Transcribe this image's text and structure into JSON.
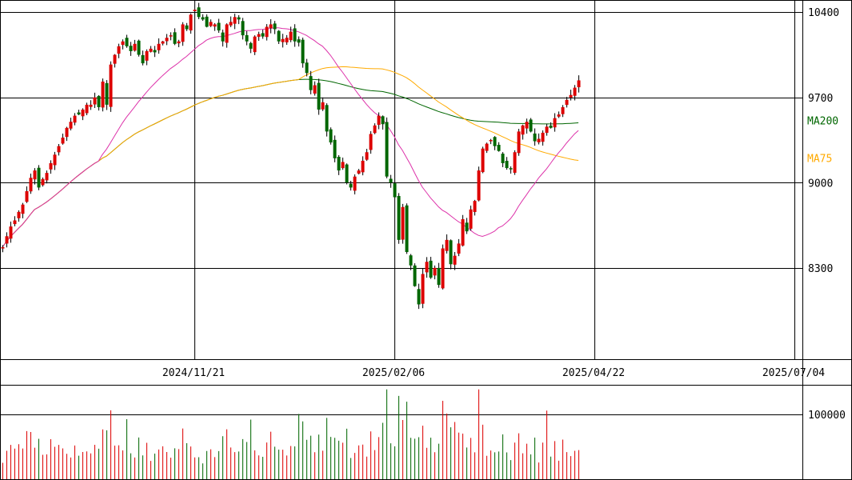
{
  "colors": {
    "up": "#dd0000",
    "down": "#006600",
    "ma25": "#dd33aa",
    "ma75": "#ffaa00",
    "ma200": "#006600",
    "grid": "#000000"
  },
  "chart_data": [
    {
      "type": "candlestick",
      "x_tick_labels": [
        "2024/11/21",
        "2025/02/06",
        "2025/04/22",
        "2025/07/04"
      ],
      "x_tick_index": [
        48,
        98,
        148,
        198
      ],
      "y_ticks": [
        8300,
        9000,
        9700,
        10400
      ],
      "ylim": [
        7550,
        10500
      ],
      "grid": true,
      "ma_labels": [
        {
          "name": "MA200",
          "color_key": "ma200"
        },
        {
          "name": "MA75",
          "color_key": "ma75"
        }
      ],
      "closes": [
        8470,
        8560,
        8640,
        8690,
        8760,
        8820,
        8930,
        9040,
        9100,
        8960,
        9030,
        9080,
        9160,
        9230,
        9300,
        9370,
        9450,
        9500,
        9550,
        9560,
        9600,
        9640,
        9640,
        9700,
        9620,
        9830,
        9640,
        9970,
        10050,
        10120,
        10160,
        10120,
        10080,
        10140,
        10050,
        9980,
        10080,
        10100,
        10070,
        10140,
        10160,
        10190,
        10210,
        10140,
        10160,
        10300,
        10260,
        10380,
        10420,
        10360,
        10340,
        10280,
        10320,
        10300,
        10250,
        10160,
        10300,
        10320,
        10360,
        10340,
        10210,
        10160,
        10100,
        10200,
        10220,
        10200,
        10280,
        10300,
        10260,
        10160,
        10180,
        10190,
        10240,
        10160,
        10150,
        9980,
        9900,
        9760,
        9800,
        9600,
        9660,
        9420,
        9330,
        9200,
        9100,
        9170,
        9000,
        8960,
        9050,
        9100,
        9180,
        9250,
        9400,
        9470,
        9550,
        9480,
        9050,
        9000,
        8880,
        8530,
        8800,
        8430,
        8320,
        8150,
        8000,
        8250,
        8350,
        8220,
        8300,
        8160,
        8460,
        8530,
        8330,
        8400,
        8500,
        8700,
        8600,
        8780,
        8850,
        9100,
        9280,
        9320,
        9350,
        9300,
        9260,
        9160,
        9120,
        9110,
        9250,
        9420,
        9470,
        9500,
        9420,
        9340,
        9360,
        9410,
        9460,
        9450,
        9530,
        9560,
        9620,
        9680,
        9720,
        9780,
        9840
      ],
      "volume_ticks": [
        100000
      ],
      "volume_ylim": [
        0,
        145000
      ]
    }
  ]
}
